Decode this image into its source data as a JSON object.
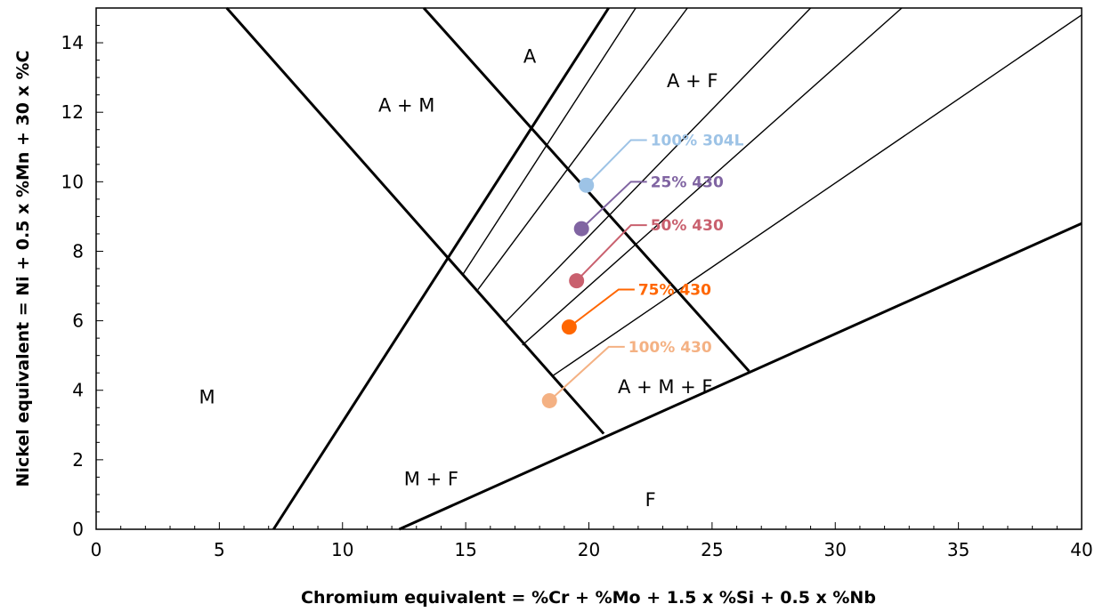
{
  "chart_data": {
    "type": "scatter",
    "title": "",
    "xlabel": "Chromium equivalent = %Cr + %Mo + 1.5 x %Si + 0.5 x %Nb",
    "ylabel": "Nickel equivalent = Ni + 0.5 x %Mn + 30 x %C",
    "xlim": [
      0,
      40
    ],
    "ylim": [
      0,
      15
    ],
    "x_ticks": [
      "0",
      "5",
      "10",
      "15",
      "20",
      "25",
      "30",
      "35",
      "40"
    ],
    "y_ticks": [
      "0",
      "2",
      "4",
      "6",
      "8",
      "10",
      "12",
      "14"
    ],
    "grid": false,
    "legend": "none",
    "boundary_lines": [
      {
        "name": "M/A+M boundary",
        "style": "thick",
        "points": [
          [
            5.3,
            15
          ],
          [
            20.6,
            2.75
          ]
        ]
      },
      {
        "name": "A/A+F boundary",
        "style": "thick",
        "points": [
          [
            13.3,
            15
          ],
          [
            26.5,
            4.55
          ]
        ]
      },
      {
        "name": "M+F boundary",
        "style": "thick",
        "points": [
          [
            7.2,
            0
          ],
          [
            20.8,
            15
          ]
        ]
      },
      {
        "name": "F boundary",
        "style": "thick",
        "points": [
          [
            12.3,
            0
          ],
          [
            40,
            8.8
          ]
        ]
      },
      {
        "name": "ferrite 0%",
        "style": "thin",
        "points": [
          [
            14.9,
            7.35
          ],
          [
            21.9,
            15
          ]
        ]
      },
      {
        "name": "ferrite 5%",
        "style": "thin",
        "points": [
          [
            15.5,
            6.9
          ],
          [
            24.0,
            15
          ]
        ]
      },
      {
        "name": "ferrite 10%",
        "style": "thin",
        "points": [
          [
            16.6,
            5.95
          ],
          [
            29.0,
            15
          ]
        ]
      },
      {
        "name": "ferrite 20%",
        "style": "thin",
        "points": [
          [
            17.3,
            5.3
          ],
          [
            32.7,
            15
          ]
        ]
      },
      {
        "name": "ferrite 40%",
        "style": "thin",
        "points": [
          [
            18.5,
            4.4
          ],
          [
            40,
            14.8
          ]
        ]
      }
    ],
    "region_labels": [
      {
        "text": "A",
        "x": 17.6,
        "y": 13.6
      },
      {
        "text": "A + M",
        "x": 12.6,
        "y": 12.2
      },
      {
        "text": "A + F",
        "x": 24.2,
        "y": 12.9
      },
      {
        "text": "A + M + F",
        "x": 23.1,
        "y": 4.1
      },
      {
        "text": "M",
        "x": 4.5,
        "y": 3.8
      },
      {
        "text": "M + F",
        "x": 13.6,
        "y": 1.45
      },
      {
        "text": "F",
        "x": 22.5,
        "y": 0.85
      }
    ],
    "series": [
      {
        "name": "100% 304L",
        "x": 19.9,
        "y": 9.9,
        "color": "#9dc3e6",
        "label": {
          "text": "100% 304L",
          "x": 22.5,
          "y": 11.2
        }
      },
      {
        "name": "25% 430",
        "x": 19.7,
        "y": 8.65,
        "color": "#8064a2",
        "label": {
          "text": "25% 430",
          "x": 22.5,
          "y": 10.0
        }
      },
      {
        "name": "50% 430",
        "x": 19.5,
        "y": 7.15,
        "color": "#c9606e",
        "label": {
          "text": "50% 430",
          "x": 22.5,
          "y": 8.75
        }
      },
      {
        "name": "75% 430",
        "x": 19.2,
        "y": 5.82,
        "color": "#ff6600",
        "label": {
          "text": "75% 430",
          "x": 22.0,
          "y": 6.9
        }
      },
      {
        "name": "100% 430",
        "x": 18.4,
        "y": 3.7,
        "color": "#f4b183",
        "label": {
          "text": "100% 430",
          "x": 21.6,
          "y": 5.25
        }
      }
    ]
  }
}
